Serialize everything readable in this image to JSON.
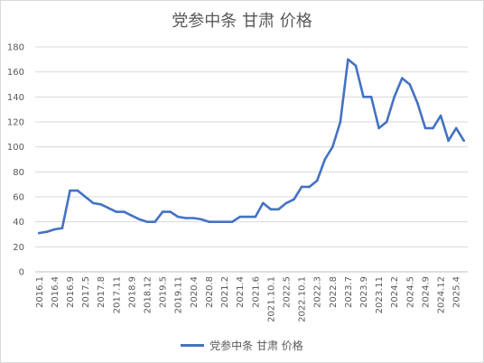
{
  "chart_data": {
    "type": "line",
    "title": "党参中条 甘肃 价格",
    "xlabel": "",
    "ylabel": "",
    "ylim": [
      0,
      180
    ],
    "yticks": [
      0,
      20,
      40,
      60,
      80,
      100,
      120,
      140,
      160,
      180
    ],
    "grid": true,
    "legend_position": "bottom",
    "color": "#4472C4",
    "x_tick_labels": [
      "2016.1",
      "2016.4",
      "2016.9",
      "2017.5",
      "2017.8",
      "2017.11",
      "2018.9",
      "2018.12",
      "2019.5",
      "2019.11",
      "2020.4",
      "2020.8",
      "2021.2",
      "2021.4",
      "2021.6",
      "2021.10.1",
      "2022.5",
      "2022.10.1",
      "2022.3",
      "2022.8",
      "2023.7",
      "2023.9",
      "2023.11",
      "2024.2",
      "2024.5",
      "2024.9",
      "2024.12",
      "2025.4"
    ],
    "series": [
      {
        "name": "党参中条 甘肃 价格",
        "values": [
          31,
          32,
          34,
          35,
          65,
          65,
          60,
          55,
          54,
          51,
          48,
          48,
          45,
          42,
          40,
          40,
          48,
          48,
          44,
          43,
          43,
          42,
          40,
          40,
          40,
          40,
          44,
          44,
          44,
          55,
          50,
          50,
          55,
          58,
          68,
          68,
          73,
          90,
          100,
          120,
          170,
          165,
          140,
          140,
          115,
          120,
          140,
          155,
          150,
          135,
          115,
          115,
          125,
          105,
          115,
          105
        ]
      }
    ]
  }
}
